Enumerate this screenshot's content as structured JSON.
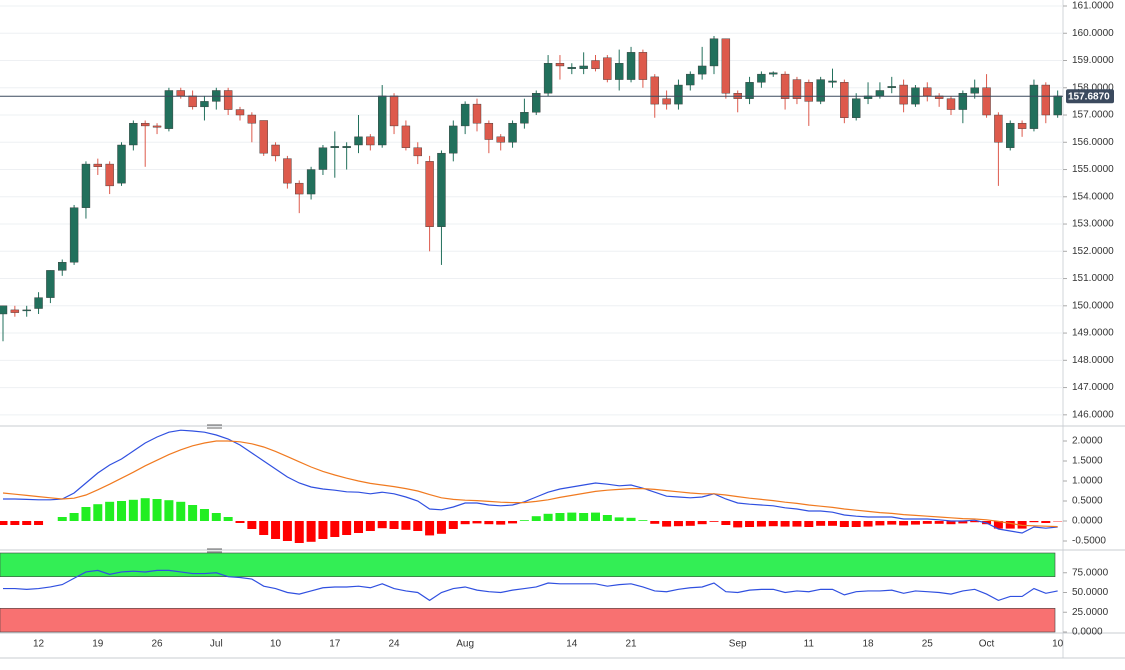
{
  "chart_data": [
    {
      "type": "candlestick",
      "categories": [
        null,
        null,
        null,
        "12",
        null,
        null,
        null,
        null,
        "19",
        null,
        null,
        null,
        null,
        "26",
        null,
        null,
        null,
        null,
        "Jul",
        null,
        null,
        null,
        null,
        "10",
        null,
        null,
        null,
        null,
        "17",
        null,
        null,
        null,
        null,
        "24",
        null,
        null,
        null,
        null,
        null,
        "Aug",
        null,
        null,
        null,
        null,
        null,
        null,
        null,
        null,
        "14",
        null,
        null,
        null,
        null,
        "21",
        null,
        null,
        null,
        null,
        null,
        null,
        null,
        null,
        "Sep",
        null,
        null,
        null,
        null,
        null,
        "11",
        null,
        null,
        null,
        null,
        "18",
        null,
        null,
        null,
        null,
        "25",
        null,
        null,
        null,
        null,
        "Oct",
        null,
        null,
        null,
        null,
        null,
        "10"
      ],
      "open": [
        149.7,
        149.85,
        149.85,
        149.9,
        150.3,
        151.3,
        151.6,
        153.6,
        155.2,
        155.2,
        154.5,
        155.9,
        156.7,
        156.6,
        156.5,
        157.9,
        157.7,
        157.3,
        157.5,
        157.9,
        157.2,
        157.0,
        156.8,
        155.9,
        155.4,
        154.5,
        154.1,
        155.0,
        155.8,
        155.8,
        155.9,
        156.2,
        155.9,
        157.7,
        156.6,
        155.8,
        155.3,
        152.9,
        155.6,
        156.6,
        157.4,
        156.7,
        156.2,
        156.0,
        156.7,
        157.1,
        157.8,
        158.9,
        158.7,
        158.7,
        159.0,
        159.1,
        158.3,
        158.3,
        159.3,
        158.4,
        157.6,
        157.4,
        158.1,
        158.5,
        158.8,
        159.8,
        157.8,
        157.6,
        158.2,
        158.5,
        158.5,
        158.3,
        158.2,
        157.5,
        158.2,
        158.2,
        156.9,
        157.6,
        157.7,
        158.0,
        158.1,
        157.4,
        158.0,
        157.7,
        157.6,
        157.2,
        157.8,
        158.0,
        157.0,
        155.8,
        156.7,
        156.5,
        158.1,
        157.0
      ],
      "high": [
        150.0,
        150.0,
        150.0,
        150.5,
        151.3,
        151.7,
        153.7,
        155.3,
        155.4,
        155.3,
        156.0,
        156.8,
        156.8,
        156.7,
        158.0,
        158.0,
        157.9,
        157.7,
        158.0,
        158.0,
        157.3,
        157.1,
        156.8,
        156.0,
        155.5,
        154.6,
        155.1,
        155.9,
        156.4,
        156.0,
        157.0,
        156.3,
        158.1,
        157.8,
        156.8,
        156.0,
        155.5,
        155.7,
        156.8,
        157.5,
        157.6,
        156.8,
        156.3,
        156.8,
        157.6,
        157.9,
        159.2,
        159.2,
        158.9,
        159.3,
        159.2,
        159.2,
        159.4,
        159.5,
        159.4,
        158.5,
        157.9,
        158.3,
        158.6,
        159.5,
        159.9,
        159.8,
        157.9,
        158.4,
        158.6,
        158.6,
        158.6,
        158.4,
        158.3,
        158.4,
        158.7,
        158.3,
        157.8,
        158.2,
        158.2,
        158.4,
        158.3,
        158.1,
        158.2,
        157.8,
        157.7,
        157.9,
        158.3,
        158.5,
        157.1,
        156.8,
        156.8,
        158.3,
        158.2,
        157.9
      ],
      "low": [
        148.7,
        149.6,
        149.6,
        149.7,
        150.1,
        151.1,
        151.5,
        153.2,
        154.8,
        154.1,
        154.4,
        155.7,
        155.1,
        156.3,
        156.4,
        157.6,
        157.2,
        156.8,
        157.2,
        157.0,
        156.8,
        156.0,
        155.5,
        155.3,
        154.3,
        153.4,
        153.9,
        154.8,
        154.7,
        155.0,
        155.6,
        155.7,
        155.8,
        156.3,
        155.7,
        155.2,
        152.0,
        151.5,
        155.3,
        156.3,
        156.4,
        155.6,
        155.7,
        155.8,
        156.5,
        157.0,
        157.7,
        158.3,
        158.5,
        158.5,
        158.6,
        158.2,
        157.9,
        158.2,
        158.0,
        156.9,
        157.2,
        157.2,
        157.9,
        158.3,
        158.5,
        157.6,
        157.1,
        157.4,
        158.0,
        158.4,
        157.2,
        157.4,
        156.6,
        157.4,
        158.0,
        156.7,
        156.8,
        157.4,
        157.6,
        157.8,
        157.1,
        157.3,
        157.5,
        157.3,
        157.0,
        156.7,
        157.6,
        156.9,
        154.4,
        155.7,
        156.2,
        156.4,
        156.7,
        156.9
      ],
      "close": [
        150.0,
        149.75,
        149.85,
        150.3,
        151.3,
        151.6,
        153.6,
        155.2,
        155.1,
        154.4,
        155.9,
        156.7,
        156.6,
        156.55,
        157.9,
        157.7,
        157.3,
        157.5,
        157.9,
        157.2,
        157.0,
        156.7,
        155.6,
        155.5,
        154.5,
        154.1,
        155.0,
        155.8,
        155.85,
        155.85,
        156.2,
        155.9,
        157.7,
        156.6,
        155.8,
        155.5,
        152.9,
        155.6,
        156.6,
        157.4,
        156.7,
        156.1,
        156.0,
        156.7,
        157.1,
        157.8,
        158.9,
        158.8,
        158.75,
        158.8,
        158.7,
        158.3,
        158.9,
        159.3,
        158.3,
        157.4,
        157.4,
        158.1,
        158.5,
        158.8,
        159.8,
        157.8,
        157.6,
        158.2,
        158.5,
        158.55,
        157.6,
        157.6,
        157.5,
        158.3,
        158.25,
        156.9,
        157.6,
        157.7,
        157.9,
        158.05,
        157.4,
        158.0,
        157.7,
        157.6,
        157.2,
        157.8,
        158.0,
        157.0,
        156.0,
        156.7,
        156.5,
        158.1,
        157.0,
        157.7
      ],
      "up_color": "#22705c",
      "down_color": "#dd5a4c",
      "ylim": [
        145.7,
        161.22
      ],
      "yticks": [
        {
          "value": 146,
          "label": "146.0000"
        },
        {
          "value": 147,
          "label": "147.0000"
        },
        {
          "value": 148,
          "label": "148.0000"
        },
        {
          "value": 149,
          "label": "149.0000"
        },
        {
          "value": 150,
          "label": "150.0000"
        },
        {
          "value": 151,
          "label": "151.0000"
        },
        {
          "value": 152,
          "label": "152.0000"
        },
        {
          "value": 153,
          "label": "153.0000"
        },
        {
          "value": 154,
          "label": "154.0000"
        },
        {
          "value": 155,
          "label": "155.0000"
        },
        {
          "value": 156,
          "label": "156.0000"
        },
        {
          "value": 157,
          "label": "157.0000"
        },
        {
          "value": 158,
          "label": "158.0000"
        },
        {
          "value": 159,
          "label": "159.0000"
        },
        {
          "value": 160,
          "label": "160.0000"
        },
        {
          "value": 161,
          "label": "161.0000"
        }
      ],
      "last_price": {
        "value": 157.687,
        "label": "157.6870"
      },
      "last_price_color": "#3b4a5e",
      "grid": true
    },
    {
      "type": "macd",
      "series": [
        {
          "kind": "histogram",
          "up_color": "#22ee22",
          "down_color": "#ff0000",
          "values": [
            -0.1,
            -0.1,
            -0.1,
            -0.1,
            0.0,
            0.1,
            0.2,
            0.35,
            0.42,
            0.48,
            0.5,
            0.53,
            0.57,
            0.55,
            0.52,
            0.48,
            0.4,
            0.3,
            0.2,
            0.1,
            -0.05,
            -0.2,
            -0.35,
            -0.45,
            -0.5,
            -0.55,
            -0.52,
            -0.45,
            -0.4,
            -0.35,
            -0.3,
            -0.25,
            -0.18,
            -0.2,
            -0.22,
            -0.25,
            -0.36,
            -0.32,
            -0.2,
            -0.08,
            -0.06,
            -0.08,
            -0.09,
            -0.06,
            0.02,
            0.12,
            0.18,
            0.2,
            0.21,
            0.2,
            0.21,
            0.15,
            0.09,
            0.08,
            0.02,
            -0.07,
            -0.14,
            -0.13,
            -0.12,
            -0.08,
            -0.02,
            -0.1,
            -0.16,
            -0.15,
            -0.14,
            -0.13,
            -0.14,
            -0.14,
            -0.15,
            -0.12,
            -0.12,
            -0.15,
            -0.15,
            -0.14,
            -0.11,
            -0.09,
            -0.11,
            -0.09,
            -0.07,
            -0.07,
            -0.08,
            -0.06,
            -0.03,
            -0.08,
            -0.19,
            -0.19,
            -0.19,
            -0.03,
            -0.05,
            -0.01
          ]
        },
        {
          "kind": "line",
          "color": "#3050e0",
          "values": [
            0.55,
            0.55,
            0.54,
            0.53,
            0.53,
            0.55,
            0.7,
            0.95,
            1.2,
            1.4,
            1.55,
            1.75,
            1.95,
            2.1,
            2.22,
            2.27,
            2.25,
            2.22,
            2.15,
            2.05,
            1.9,
            1.7,
            1.5,
            1.3,
            1.1,
            0.95,
            0.85,
            0.8,
            0.77,
            0.73,
            0.72,
            0.68,
            0.72,
            0.68,
            0.6,
            0.5,
            0.3,
            0.28,
            0.35,
            0.45,
            0.45,
            0.4,
            0.38,
            0.4,
            0.48,
            0.6,
            0.72,
            0.8,
            0.85,
            0.9,
            0.95,
            0.92,
            0.88,
            0.9,
            0.82,
            0.72,
            0.62,
            0.6,
            0.58,
            0.6,
            0.68,
            0.55,
            0.45,
            0.42,
            0.4,
            0.38,
            0.33,
            0.3,
            0.25,
            0.25,
            0.22,
            0.15,
            0.12,
            0.1,
            0.1,
            0.1,
            0.05,
            0.05,
            0.05,
            0.03,
            0.0,
            0.0,
            0.02,
            -0.05,
            -0.2,
            -0.25,
            -0.3,
            -0.15,
            -0.18,
            -0.15
          ]
        },
        {
          "kind": "line",
          "color": "#f07a20",
          "values": [
            0.7,
            0.67,
            0.64,
            0.61,
            0.58,
            0.55,
            0.57,
            0.65,
            0.78,
            0.92,
            1.07,
            1.22,
            1.38,
            1.52,
            1.66,
            1.78,
            1.88,
            1.95,
            2.0,
            2.0,
            1.98,
            1.93,
            1.85,
            1.74,
            1.61,
            1.48,
            1.35,
            1.24,
            1.15,
            1.07,
            1.0,
            0.94,
            0.9,
            0.86,
            0.81,
            0.75,
            0.66,
            0.58,
            0.54,
            0.52,
            0.51,
            0.49,
            0.47,
            0.46,
            0.46,
            0.49,
            0.53,
            0.59,
            0.64,
            0.69,
            0.74,
            0.77,
            0.79,
            0.81,
            0.81,
            0.79,
            0.76,
            0.73,
            0.7,
            0.68,
            0.68,
            0.65,
            0.61,
            0.57,
            0.54,
            0.51,
            0.47,
            0.44,
            0.4,
            0.37,
            0.34,
            0.3,
            0.27,
            0.24,
            0.21,
            0.19,
            0.16,
            0.14,
            0.12,
            0.1,
            0.08,
            0.06,
            0.05,
            0.03,
            -0.01,
            -0.06,
            -0.11,
            -0.12,
            -0.13,
            -0.14
          ]
        }
      ],
      "ylim": [
        -0.675,
        2.275
      ],
      "yticks": [
        {
          "value": 2,
          "label": "2.0000"
        },
        {
          "value": 1.5,
          "label": "1.5000"
        },
        {
          "value": 1,
          "label": "1.0000"
        },
        {
          "value": 0.5,
          "label": "0.5000"
        },
        {
          "value": 0,
          "label": "0.0000"
        },
        {
          "value": -0.5,
          "label": "-0.5000"
        }
      ]
    },
    {
      "type": "line",
      "color": "#3050e0",
      "values": [
        55,
        55,
        54,
        55,
        57,
        60,
        68,
        76,
        78,
        73,
        76,
        77,
        76,
        78,
        78,
        76,
        74,
        74,
        75,
        70,
        69,
        67,
        58,
        55,
        50,
        48,
        52,
        56,
        57,
        57,
        58,
        56,
        61,
        55,
        52,
        50,
        40,
        50,
        55,
        57,
        53,
        51,
        50,
        53,
        55,
        57,
        62,
        61,
        61,
        61,
        61,
        58,
        60,
        61,
        57,
        52,
        51,
        54,
        56,
        57,
        62,
        51,
        50,
        53,
        54,
        54,
        50,
        52,
        51,
        54,
        54,
        47,
        51,
        52,
        52,
        53,
        49,
        52,
        51,
        50,
        48,
        52,
        54,
        48,
        40,
        45,
        45,
        55,
        49,
        52
      ],
      "zones": [
        {
          "range": [
            70,
            100
          ],
          "color": "#33ee55"
        },
        {
          "range": [
            0,
            30
          ],
          "color": "#f87171"
        }
      ],
      "ylim": [
        0,
        100
      ],
      "yticks": [
        {
          "value": 75,
          "label": "75.0000"
        },
        {
          "value": 50,
          "label": "50.0000"
        },
        {
          "value": 25,
          "label": "25.0000"
        },
        {
          "value": 0,
          "label": "0.0000"
        }
      ]
    }
  ]
}
